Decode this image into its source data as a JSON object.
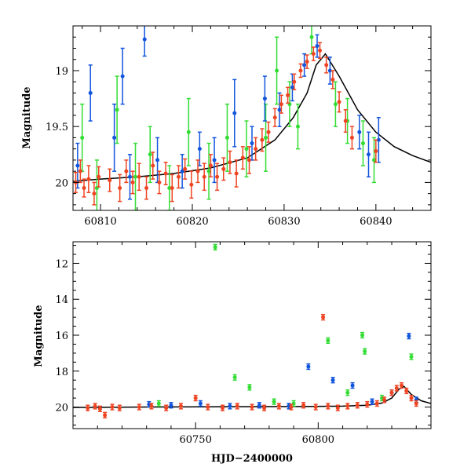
{
  "chart_data": [
    {
      "type": "scatter",
      "title": "",
      "xlabel": "",
      "ylabel": "Magnitude",
      "xlim": [
        60807,
        60846
      ],
      "ylim": [
        20.25,
        18.6
      ],
      "y_inverted": true,
      "xticks": [
        60810,
        60820,
        60830,
        60840
      ],
      "xtick_labels": [
        "60810",
        "60820",
        "60830",
        "60840"
      ],
      "yticks": [
        19,
        19.5,
        20
      ],
      "ytick_labels": [
        "19",
        "19.5",
        "20"
      ],
      "grid": false,
      "colors": {
        "red": "#ee4422",
        "blue": "#1155dd",
        "green": "#33dd33",
        "model": "#000000"
      },
      "model_curve": {
        "x": [
          60807,
          60810,
          60814,
          60818,
          60822,
          60826,
          60829,
          60831,
          60832.5,
          60833.5,
          60834.5,
          60836,
          60838,
          60840,
          60842,
          60844,
          60846
        ],
        "y": [
          19.99,
          19.97,
          19.95,
          19.92,
          19.87,
          19.78,
          19.62,
          19.42,
          19.2,
          18.95,
          18.85,
          19.05,
          19.35,
          19.55,
          19.68,
          19.76,
          19.82
        ]
      },
      "series": [
        {
          "color": "red",
          "points": [
            {
              "x": 60807.3,
              "y": 20.0,
              "err": 0.09
            },
            {
              "x": 60807.8,
              "y": 19.9,
              "err": 0.1
            },
            {
              "x": 60808.2,
              "y": 20.05,
              "err": 0.08
            },
            {
              "x": 60808.7,
              "y": 19.97,
              "err": 0.12
            },
            {
              "x": 60809.3,
              "y": 20.1,
              "err": 0.1
            },
            {
              "x": 60809.8,
              "y": 19.95,
              "err": 0.09
            },
            {
              "x": 60811.0,
              "y": 19.98,
              "err": 0.1
            },
            {
              "x": 60812.1,
              "y": 20.05,
              "err": 0.12
            },
            {
              "x": 60812.8,
              "y": 19.9,
              "err": 0.1
            },
            {
              "x": 60813.5,
              "y": 20.0,
              "err": 0.1
            },
            {
              "x": 60814.2,
              "y": 19.95,
              "err": 0.12
            },
            {
              "x": 60815.0,
              "y": 20.05,
              "err": 0.1
            },
            {
              "x": 60815.7,
              "y": 19.85,
              "err": 0.12
            },
            {
              "x": 60816.4,
              "y": 20.0,
              "err": 0.1
            },
            {
              "x": 60817.1,
              "y": 19.92,
              "err": 0.1
            },
            {
              "x": 60817.8,
              "y": 20.05,
              "err": 0.12
            },
            {
              "x": 60818.5,
              "y": 19.95,
              "err": 0.1
            },
            {
              "x": 60819.2,
              "y": 19.88,
              "err": 0.09
            },
            {
              "x": 60819.9,
              "y": 20.02,
              "err": 0.12
            },
            {
              "x": 60820.6,
              "y": 19.9,
              "err": 0.1
            },
            {
              "x": 60821.3,
              "y": 19.95,
              "err": 0.12
            },
            {
              "x": 60822.0,
              "y": 19.85,
              "err": 0.1
            },
            {
              "x": 60822.7,
              "y": 19.95,
              "err": 0.12
            },
            {
              "x": 60823.4,
              "y": 19.88,
              "err": 0.1
            },
            {
              "x": 60824.1,
              "y": 19.82,
              "err": 0.1
            },
            {
              "x": 60824.8,
              "y": 19.92,
              "err": 0.12
            },
            {
              "x": 60825.5,
              "y": 19.78,
              "err": 0.1
            },
            {
              "x": 60826.2,
              "y": 19.8,
              "err": 0.12
            },
            {
              "x": 60826.9,
              "y": 19.7,
              "err": 0.1
            },
            {
              "x": 60827.6,
              "y": 19.62,
              "err": 0.1
            },
            {
              "x": 60828.3,
              "y": 19.55,
              "err": 0.09
            },
            {
              "x": 60829.0,
              "y": 19.42,
              "err": 0.08
            },
            {
              "x": 60829.7,
              "y": 19.3,
              "err": 0.08
            },
            {
              "x": 60830.4,
              "y": 19.22,
              "err": 0.07
            },
            {
              "x": 60831.1,
              "y": 19.1,
              "err": 0.07
            },
            {
              "x": 60831.8,
              "y": 19.0,
              "err": 0.06
            },
            {
              "x": 60832.5,
              "y": 18.92,
              "err": 0.06
            },
            {
              "x": 60833.2,
              "y": 18.85,
              "err": 0.06
            },
            {
              "x": 60833.9,
              "y": 18.82,
              "err": 0.07
            },
            {
              "x": 60834.6,
              "y": 18.95,
              "err": 0.07
            },
            {
              "x": 60835.3,
              "y": 19.08,
              "err": 0.08
            },
            {
              "x": 60836.0,
              "y": 19.28,
              "err": 0.09
            },
            {
              "x": 60836.7,
              "y": 19.45,
              "err": 0.1
            },
            {
              "x": 60837.4,
              "y": 19.6,
              "err": 0.1
            },
            {
              "x": 60840.0,
              "y": 19.72,
              "err": 0.1
            }
          ]
        },
        {
          "color": "blue",
          "points": [
            {
              "x": 60807.5,
              "y": 19.85,
              "err": 0.2
            },
            {
              "x": 60808.9,
              "y": 19.2,
              "err": 0.25
            },
            {
              "x": 60811.5,
              "y": 19.6,
              "err": 0.3
            },
            {
              "x": 60812.4,
              "y": 19.05,
              "err": 0.25
            },
            {
              "x": 60813.2,
              "y": 19.95,
              "err": 0.2
            },
            {
              "x": 60814.8,
              "y": 18.72,
              "err": 0.15
            },
            {
              "x": 60816.2,
              "y": 19.8,
              "err": 0.2
            },
            {
              "x": 60818.9,
              "y": 19.9,
              "err": 0.15
            },
            {
              "x": 60820.8,
              "y": 19.7,
              "err": 0.15
            },
            {
              "x": 60822.4,
              "y": 19.8,
              "err": 0.2
            },
            {
              "x": 60824.6,
              "y": 19.38,
              "err": 0.3
            },
            {
              "x": 60826.5,
              "y": 19.65,
              "err": 0.15
            },
            {
              "x": 60827.9,
              "y": 19.25,
              "err": 0.2
            },
            {
              "x": 60829.5,
              "y": 19.35,
              "err": 0.15
            },
            {
              "x": 60830.9,
              "y": 19.15,
              "err": 0.12
            },
            {
              "x": 60832.2,
              "y": 18.95,
              "err": 0.1
            },
            {
              "x": 60833.6,
              "y": 18.78,
              "err": 0.1
            },
            {
              "x": 60835.0,
              "y": 19.0,
              "err": 0.12
            },
            {
              "x": 60838.2,
              "y": 19.55,
              "err": 0.15
            },
            {
              "x": 60839.2,
              "y": 19.75,
              "err": 0.2
            },
            {
              "x": 60840.3,
              "y": 19.62,
              "err": 0.2
            }
          ]
        },
        {
          "color": "green",
          "points": [
            {
              "x": 60808.0,
              "y": 19.6,
              "err": 0.3
            },
            {
              "x": 60809.6,
              "y": 20.05,
              "err": 0.25
            },
            {
              "x": 60811.8,
              "y": 19.35,
              "err": 0.3
            },
            {
              "x": 60813.8,
              "y": 19.95,
              "err": 0.3
            },
            {
              "x": 60815.4,
              "y": 19.75,
              "err": 0.25
            },
            {
              "x": 60817.5,
              "y": 20.05,
              "err": 0.2
            },
            {
              "x": 60819.6,
              "y": 19.55,
              "err": 0.3
            },
            {
              "x": 60821.8,
              "y": 19.9,
              "err": 0.25
            },
            {
              "x": 60823.8,
              "y": 19.6,
              "err": 0.3
            },
            {
              "x": 60825.9,
              "y": 19.7,
              "err": 0.25
            },
            {
              "x": 60828.0,
              "y": 19.6,
              "err": 0.3
            },
            {
              "x": 60829.2,
              "y": 19.0,
              "err": 0.3
            },
            {
              "x": 60830.6,
              "y": 19.3,
              "err": 0.2
            },
            {
              "x": 60831.5,
              "y": 19.5,
              "err": 0.2
            },
            {
              "x": 60833.0,
              "y": 18.7,
              "err": 0.15
            },
            {
              "x": 60835.6,
              "y": 19.3,
              "err": 0.2
            },
            {
              "x": 60836.9,
              "y": 19.45,
              "err": 0.2
            },
            {
              "x": 60838.6,
              "y": 19.65,
              "err": 0.2
            },
            {
              "x": 60839.8,
              "y": 19.8,
              "err": 0.2
            }
          ]
        }
      ]
    },
    {
      "type": "scatter",
      "title": "",
      "xlabel": "HJD−2400000",
      "ylabel": "Magnitude",
      "xlim": [
        60700,
        60846
      ],
      "ylim": [
        21.2,
        10.8
      ],
      "y_inverted": true,
      "xticks": [
        60750,
        60800
      ],
      "xtick_labels": [
        "60750",
        "60800"
      ],
      "yticks": [
        12,
        14,
        16,
        18,
        20
      ],
      "ytick_labels": [
        "12",
        "14",
        "16",
        "18",
        "20"
      ],
      "grid": false,
      "colors": {
        "red": "#ee4422",
        "blue": "#1155dd",
        "green": "#33dd33",
        "model": "#000000"
      },
      "model_curve": {
        "x": [
          60700,
          60730,
          60760,
          60790,
          60810,
          60820,
          60826,
          60830,
          60833,
          60835,
          60838,
          60842,
          60846
        ],
        "y": [
          20.02,
          20.0,
          19.98,
          19.97,
          19.95,
          19.9,
          19.78,
          19.5,
          19.0,
          18.85,
          19.3,
          19.65,
          19.8
        ]
      },
      "series": [
        {
          "color": "red",
          "points": [
            {
              "x": 60706,
              "y": 20.05
            },
            {
              "x": 60709,
              "y": 19.95
            },
            {
              "x": 60711,
              "y": 20.1
            },
            {
              "x": 60713,
              "y": 20.45
            },
            {
              "x": 60716,
              "y": 20.0
            },
            {
              "x": 60719,
              "y": 20.05
            },
            {
              "x": 60727,
              "y": 20.0
            },
            {
              "x": 60732,
              "y": 19.95
            },
            {
              "x": 60738,
              "y": 20.05
            },
            {
              "x": 60744,
              "y": 19.95
            },
            {
              "x": 60750,
              "y": 19.5
            },
            {
              "x": 60755,
              "y": 20.0
            },
            {
              "x": 60761,
              "y": 20.05
            },
            {
              "x": 60767,
              "y": 19.95
            },
            {
              "x": 60773,
              "y": 20.0
            },
            {
              "x": 60778,
              "y": 20.05
            },
            {
              "x": 60784,
              "y": 19.95
            },
            {
              "x": 60789,
              "y": 20.0
            },
            {
              "x": 60794,
              "y": 19.9
            },
            {
              "x": 60799,
              "y": 20.0
            },
            {
              "x": 60802,
              "y": 15.0
            },
            {
              "x": 60804,
              "y": 19.95
            },
            {
              "x": 60808,
              "y": 20.05
            },
            {
              "x": 60812,
              "y": 19.95
            },
            {
              "x": 60816,
              "y": 19.9
            },
            {
              "x": 60820,
              "y": 19.85
            },
            {
              "x": 60824,
              "y": 19.8
            },
            {
              "x": 60827,
              "y": 19.6
            },
            {
              "x": 60830,
              "y": 19.2
            },
            {
              "x": 60832,
              "y": 18.95
            },
            {
              "x": 60834,
              "y": 18.8
            },
            {
              "x": 60836,
              "y": 19.1
            },
            {
              "x": 60838,
              "y": 19.5
            },
            {
              "x": 60840,
              "y": 19.8
            }
          ]
        },
        {
          "color": "blue",
          "points": [
            {
              "x": 60731,
              "y": 19.85
            },
            {
              "x": 60740,
              "y": 19.9
            },
            {
              "x": 60752,
              "y": 19.8
            },
            {
              "x": 60764,
              "y": 19.95
            },
            {
              "x": 60776,
              "y": 19.9
            },
            {
              "x": 60788,
              "y": 19.95
            },
            {
              "x": 60796,
              "y": 17.75
            },
            {
              "x": 60806,
              "y": 18.5
            },
            {
              "x": 60814,
              "y": 18.8
            },
            {
              "x": 60822,
              "y": 19.7
            },
            {
              "x": 60830,
              "y": 19.2
            },
            {
              "x": 60837,
              "y": 16.05
            },
            {
              "x": 60840,
              "y": 19.6
            }
          ]
        },
        {
          "color": "green",
          "points": [
            {
              "x": 60735,
              "y": 19.8
            },
            {
              "x": 60758,
              "y": 11.1
            },
            {
              "x": 60766,
              "y": 18.35
            },
            {
              "x": 60772,
              "y": 18.9
            },
            {
              "x": 60782,
              "y": 19.7
            },
            {
              "x": 60790,
              "y": 19.8
            },
            {
              "x": 60804,
              "y": 16.3
            },
            {
              "x": 60812,
              "y": 19.2
            },
            {
              "x": 60818,
              "y": 16.0
            },
            {
              "x": 60819,
              "y": 16.9
            },
            {
              "x": 60826,
              "y": 19.5
            },
            {
              "x": 60838,
              "y": 17.2
            }
          ]
        }
      ]
    }
  ]
}
